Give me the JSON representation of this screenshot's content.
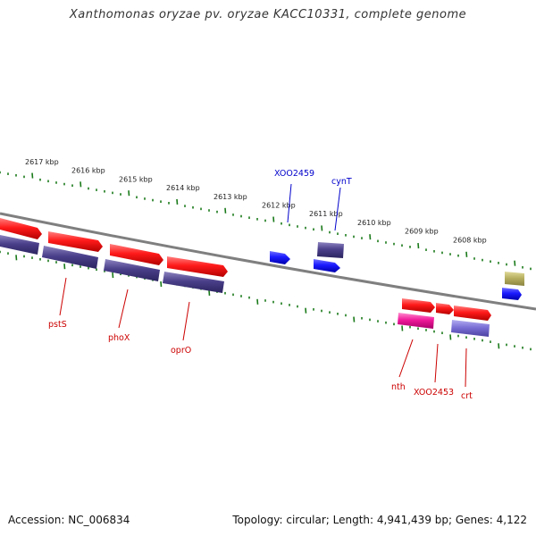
{
  "title": "Xanthomonas oryzae pv. oryzae KACC10331, complete genome",
  "footer": {
    "accession": "Accession: NC_006834",
    "topology": "Topology: circular; Length: 4,941,439 bp; Genes: 4,122"
  },
  "ruler_labels": [
    "2617 kbp",
    "2616 kbp",
    "2615 kbp",
    "2614 kbp",
    "2613 kbp",
    "2612 kbp",
    "2611 kbp",
    "2610 kbp",
    "2609 kbp",
    "2608 kbp"
  ],
  "gene_labels": [
    "XOO2459",
    "cynT",
    "pstS",
    "phoX",
    "oprO",
    "nth",
    "XOO2453",
    "crt"
  ],
  "colors": {
    "red_gene": "#ff1a1a",
    "blue_gene": "#1a1aff",
    "navy_gene": "#4a3f8a",
    "lavender_gene": "#7a6fd6",
    "magenta_gene": "#f0199a",
    "olive_gene": "#b8b060",
    "ruler_tick": "#1a7a1a",
    "backbone": "#7f7f7f"
  }
}
